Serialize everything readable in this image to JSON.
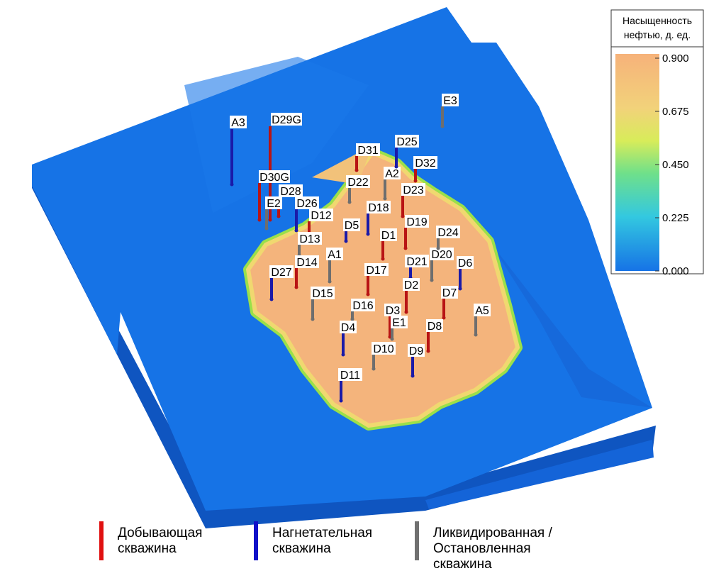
{
  "colorbar": {
    "title": [
      "Насыщенность",
      "нефтью, д. ед."
    ],
    "ticks": [
      {
        "value": 0.9,
        "label": "0.900"
      },
      {
        "value": 0.675,
        "label": "0.675"
      },
      {
        "value": 0.45,
        "label": "0.450"
      },
      {
        "value": 0.225,
        "label": "0.225"
      },
      {
        "value": 0,
        "label": "0.000"
      }
    ]
  },
  "wells": [
    {
      "label": "A3",
      "color": "#1a1aa8"
    },
    {
      "label": "D29G",
      "color": "#b81414"
    },
    {
      "label": "D30G",
      "color": "#b81414"
    },
    {
      "label": "D28",
      "color": "#b81414"
    },
    {
      "label": "E2",
      "color": "#6e6e6e"
    },
    {
      "label": "D26",
      "color": "#1a1aa8"
    },
    {
      "label": "D12",
      "color": "#b81414"
    },
    {
      "label": "D13",
      "color": "#6e6e6e"
    },
    {
      "label": "D14",
      "color": "#b81414"
    },
    {
      "label": "D27",
      "color": "#1a1aa8"
    },
    {
      "label": "A1",
      "color": "#6e6e6e"
    },
    {
      "label": "D15",
      "color": "#6e6e6e"
    },
    {
      "label": "D5",
      "color": "#1a1aa8"
    },
    {
      "label": "D18",
      "color": "#1a1aa8"
    },
    {
      "label": "D1",
      "color": "#b81414"
    },
    {
      "label": "D17",
      "color": "#b81414"
    },
    {
      "label": "D16",
      "color": "#6e6e6e"
    },
    {
      "label": "D4",
      "color": "#1a1aa8"
    },
    {
      "label": "D3",
      "color": "#b81414"
    },
    {
      "label": "E1",
      "color": "#6e6e6e"
    },
    {
      "label": "D10",
      "color": "#6e6e6e"
    },
    {
      "label": "D11",
      "color": "#1a1aa8"
    },
    {
      "label": "D9",
      "color": "#1a1aa8"
    },
    {
      "label": "D8",
      "color": "#b81414"
    },
    {
      "label": "D7",
      "color": "#b81414"
    },
    {
      "label": "A5",
      "color": "#6e6e6e"
    },
    {
      "label": "D6",
      "color": "#1a1aa8"
    },
    {
      "label": "D20",
      "color": "#6e6e6e"
    },
    {
      "label": "D21",
      "color": "#1a1aa8"
    },
    {
      "label": "D2",
      "color": "#b81414"
    },
    {
      "label": "D19",
      "color": "#b81414"
    },
    {
      "label": "D24",
      "color": "#6e6e6e"
    },
    {
      "label": "D23",
      "color": "#b81414"
    },
    {
      "label": "D22",
      "color": "#6e6e6e"
    },
    {
      "label": "A2",
      "color": "#6e6e6e"
    },
    {
      "label": "D25",
      "color": "#1a1aa8"
    },
    {
      "label": "D32",
      "color": "#b81414"
    },
    {
      "label": "D31",
      "color": "#b81414"
    },
    {
      "label": "E3",
      "color": "#6e6e6e"
    }
  ],
  "legend": [
    {
      "color": "#e01010",
      "lines": [
        "Добывающая",
        "скважина"
      ]
    },
    {
      "color": "#1010c8",
      "lines": [
        "Нагнетательная",
        "скважина"
      ]
    },
    {
      "color": "#707070",
      "lines": [
        "Ликвидированная /",
        "Остановленная",
        "скважина"
      ]
    }
  ]
}
